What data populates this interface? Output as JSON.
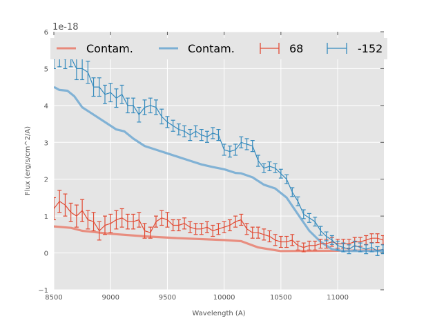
{
  "chart_data": {
    "type": "line",
    "title": "",
    "xlabel": "Wavelength (A)",
    "ylabel": "Flux (erg/s/cm^2/A)",
    "offset_text": "1e-18",
    "xlim": [
      8500,
      11407
    ],
    "ylim": [
      -1,
      6
    ],
    "grid": true,
    "x_ticks": [
      8500,
      9000,
      9500,
      10000,
      10500,
      11000
    ],
    "x_tick_labels": [
      "8500",
      "9000",
      "9500",
      "10000",
      "10500",
      "11000"
    ],
    "y_ticks": [
      -1,
      0,
      1,
      2,
      3,
      4,
      5,
      6
    ],
    "y_tick_labels": [
      "−1",
      "0",
      "1",
      "2",
      "3",
      "4",
      "5",
      "6"
    ],
    "legend_placement": "top",
    "legend": [
      "Contam.",
      "Contam.",
      "68",
      "-152"
    ],
    "series": [
      {
        "name": "Contam.",
        "kind": "line",
        "color": "#e8897a",
        "x": [
          8500,
          8650,
          8750,
          9000,
          9300,
          9600,
          10000,
          10150,
          10300,
          10500,
          11000,
          11407
        ],
        "y": [
          0.72,
          0.68,
          0.6,
          0.52,
          0.45,
          0.4,
          0.35,
          0.32,
          0.15,
          0.05,
          0.06,
          0.07
        ]
      },
      {
        "name": "Contam.",
        "kind": "line",
        "color": "#7bafd4",
        "x": [
          8500,
          8550,
          8620,
          8680,
          8750,
          8850,
          8950,
          9050,
          9120,
          9200,
          9300,
          9400,
          9500,
          9600,
          9700,
          9800,
          9900,
          10000,
          10100,
          10150,
          10250,
          10350,
          10450,
          10550,
          10650,
          10750,
          10850,
          10950,
          11050,
          11407
        ],
        "y": [
          4.5,
          4.42,
          4.4,
          4.25,
          3.95,
          3.75,
          3.55,
          3.35,
          3.3,
          3.1,
          2.9,
          2.8,
          2.7,
          2.6,
          2.5,
          2.4,
          2.33,
          2.27,
          2.17,
          2.16,
          2.05,
          1.85,
          1.75,
          1.5,
          1.05,
          0.6,
          0.3,
          0.1,
          0.05,
          0.05
        ]
      },
      {
        "name": "68",
        "kind": "errorbar",
        "color": "#e24a33",
        "x": [
          8500,
          8550,
          8600,
          8650,
          8700,
          8750,
          8800,
          8850,
          8900,
          8950,
          9000,
          9050,
          9100,
          9150,
          9200,
          9250,
          9300,
          9350,
          9400,
          9450,
          9500,
          9550,
          9600,
          9650,
          9700,
          9750,
          9800,
          9850,
          9900,
          9950,
          10000,
          10050,
          10100,
          10150,
          10200,
          10250,
          10300,
          10350,
          10400,
          10450,
          10500,
          10550,
          10600,
          10650,
          10700,
          10750,
          10800,
          10850,
          10900,
          10950,
          11000,
          11050,
          11100,
          11150,
          11200,
          11250,
          11300,
          11350,
          11400
        ],
        "y": [
          1.2,
          1.4,
          1.3,
          1.1,
          1.0,
          1.15,
          0.9,
          0.85,
          0.6,
          0.75,
          0.8,
          0.9,
          0.95,
          0.85,
          0.85,
          0.9,
          0.6,
          0.55,
          0.85,
          0.95,
          0.9,
          0.75,
          0.75,
          0.8,
          0.7,
          0.65,
          0.65,
          0.7,
          0.6,
          0.65,
          0.7,
          0.75,
          0.85,
          0.9,
          0.65,
          0.55,
          0.55,
          0.5,
          0.45,
          0.35,
          0.3,
          0.3,
          0.35,
          0.2,
          0.15,
          0.2,
          0.2,
          0.25,
          0.25,
          0.3,
          0.25,
          0.25,
          0.25,
          0.3,
          0.3,
          0.35,
          0.4,
          0.4,
          0.35
        ],
        "yerr": [
          0.3,
          0.3,
          0.3,
          0.25,
          0.3,
          0.3,
          0.25,
          0.25,
          0.25,
          0.25,
          0.25,
          0.25,
          0.25,
          0.2,
          0.2,
          0.2,
          0.2,
          0.15,
          0.15,
          0.2,
          0.2,
          0.15,
          0.15,
          0.15,
          0.15,
          0.15,
          0.15,
          0.15,
          0.15,
          0.15,
          0.15,
          0.15,
          0.15,
          0.15,
          0.15,
          0.15,
          0.15,
          0.15,
          0.15,
          0.15,
          0.15,
          0.15,
          0.15,
          0.12,
          0.12,
          0.12,
          0.12,
          0.12,
          0.12,
          0.12,
          0.12,
          0.12,
          0.12,
          0.12,
          0.12,
          0.12,
          0.12,
          0.12,
          0.12
        ]
      },
      {
        "name": "-152",
        "kind": "errorbar",
        "color": "#348abd",
        "x": [
          8500,
          8550,
          8600,
          8650,
          8700,
          8750,
          8800,
          8850,
          8900,
          8950,
          9000,
          9050,
          9100,
          9150,
          9200,
          9250,
          9300,
          9350,
          9400,
          9450,
          9500,
          9550,
          9600,
          9650,
          9700,
          9750,
          9800,
          9850,
          9900,
          9950,
          10000,
          10050,
          10100,
          10150,
          10200,
          10250,
          10300,
          10350,
          10400,
          10450,
          10500,
          10550,
          10600,
          10650,
          10700,
          10750,
          10800,
          10850,
          10900,
          10950,
          11000,
          11050,
          11100,
          11150,
          11200,
          11250,
          11300,
          11350,
          11400
        ],
        "y": [
          5.25,
          5.3,
          5.25,
          5.3,
          5.0,
          5.0,
          4.9,
          4.5,
          4.5,
          4.3,
          4.35,
          4.2,
          4.3,
          4.0,
          4.0,
          3.75,
          3.95,
          4.0,
          3.95,
          3.7,
          3.55,
          3.45,
          3.35,
          3.3,
          3.2,
          3.3,
          3.2,
          3.15,
          3.25,
          3.2,
          2.8,
          2.75,
          2.8,
          3.0,
          2.95,
          2.9,
          2.5,
          2.3,
          2.35,
          2.3,
          2.15,
          2.0,
          1.65,
          1.4,
          1.05,
          0.95,
          0.85,
          0.6,
          0.45,
          0.35,
          0.2,
          0.15,
          0.1,
          0.2,
          0.15,
          0.1,
          0.15,
          0.05,
          0.1
        ],
        "yerr": [
          0.25,
          0.25,
          0.25,
          0.25,
          0.3,
          0.3,
          0.3,
          0.25,
          0.25,
          0.25,
          0.25,
          0.25,
          0.25,
          0.2,
          0.2,
          0.2,
          0.2,
          0.2,
          0.2,
          0.2,
          0.15,
          0.15,
          0.15,
          0.15,
          0.15,
          0.15,
          0.15,
          0.15,
          0.15,
          0.15,
          0.15,
          0.15,
          0.15,
          0.15,
          0.15,
          0.15,
          0.15,
          0.12,
          0.12,
          0.12,
          0.12,
          0.12,
          0.12,
          0.12,
          0.12,
          0.12,
          0.12,
          0.12,
          0.12,
          0.12,
          0.12,
          0.12,
          0.12,
          0.12,
          0.12,
          0.12,
          0.12,
          0.12,
          0.12
        ]
      }
    ]
  }
}
